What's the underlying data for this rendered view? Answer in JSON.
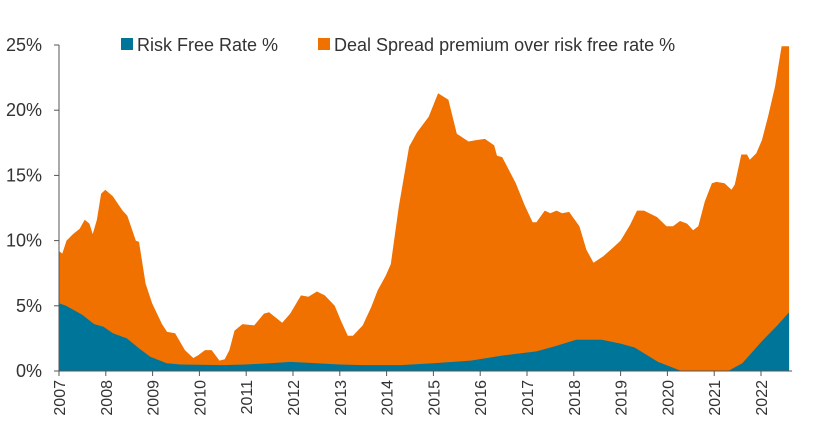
{
  "chart_data": {
    "type": "area",
    "stacked": true,
    "title": "",
    "xlabel": "",
    "ylabel": "",
    "xlim": [
      2007,
      2022.6
    ],
    "ylim": [
      0,
      25
    ],
    "yticks": [
      "0%",
      "5%",
      "10%",
      "15%",
      "20%",
      "25%"
    ],
    "ytick_values": [
      0,
      5,
      10,
      15,
      20,
      25
    ],
    "xticks": [
      "2007",
      "2008",
      "2009",
      "2010",
      "2011",
      "2012",
      "2013",
      "2014",
      "2015",
      "2016",
      "2017",
      "2018",
      "2019",
      "2020",
      "2021",
      "2022"
    ],
    "legend_position": "top",
    "series": [
      {
        "name": "Risk Free Rate %",
        "color": "#00759a",
        "points": [
          [
            2007.0,
            5.2
          ],
          [
            2007.15,
            5.0
          ],
          [
            2007.5,
            4.3
          ],
          [
            2007.75,
            3.6
          ],
          [
            2007.95,
            3.4
          ],
          [
            2008.15,
            2.9
          ],
          [
            2008.45,
            2.5
          ],
          [
            2008.72,
            1.7
          ],
          [
            2008.95,
            1.1
          ],
          [
            2009.3,
            0.6
          ],
          [
            2009.6,
            0.5
          ],
          [
            2010.5,
            0.45
          ],
          [
            2011.0,
            0.5
          ],
          [
            2011.5,
            0.6
          ],
          [
            2011.95,
            0.7
          ],
          [
            2012.5,
            0.6
          ],
          [
            2013.0,
            0.5
          ],
          [
            2013.5,
            0.45
          ],
          [
            2014.3,
            0.45
          ],
          [
            2015.0,
            0.6
          ],
          [
            2015.8,
            0.8
          ],
          [
            2016.5,
            1.2
          ],
          [
            2017.2,
            1.5
          ],
          [
            2017.6,
            1.9
          ],
          [
            2018.05,
            2.4
          ],
          [
            2018.6,
            2.4
          ],
          [
            2019.0,
            2.1
          ],
          [
            2019.3,
            1.8
          ],
          [
            2019.8,
            0.7
          ],
          [
            2020.3,
            0.0
          ],
          [
            2021.3,
            0.0
          ],
          [
            2021.6,
            0.6
          ],
          [
            2022.05,
            2.4
          ],
          [
            2022.35,
            3.5
          ],
          [
            2022.6,
            4.5
          ]
        ]
      },
      {
        "name": "Deal Spread premium over risk free rate %",
        "color": "#f07000",
        "stacked_total_points": [
          [
            2007.0,
            9.2
          ],
          [
            2007.07,
            9.0
          ],
          [
            2007.16,
            10.0
          ],
          [
            2007.3,
            10.5
          ],
          [
            2007.44,
            10.9
          ],
          [
            2007.55,
            11.6
          ],
          [
            2007.65,
            11.3
          ],
          [
            2007.72,
            10.5
          ],
          [
            2007.81,
            11.6
          ],
          [
            2007.9,
            13.6
          ],
          [
            2007.99,
            13.9
          ],
          [
            2008.15,
            13.4
          ],
          [
            2008.36,
            12.3
          ],
          [
            2008.46,
            11.9
          ],
          [
            2008.64,
            10.0
          ],
          [
            2008.71,
            9.9
          ],
          [
            2008.85,
            6.7
          ],
          [
            2008.99,
            5.2
          ],
          [
            2009.2,
            3.6
          ],
          [
            2009.31,
            3.0
          ],
          [
            2009.48,
            2.9
          ],
          [
            2009.69,
            1.6
          ],
          [
            2009.87,
            1.0
          ],
          [
            2009.97,
            1.2
          ],
          [
            2010.12,
            1.6
          ],
          [
            2010.26,
            1.6
          ],
          [
            2010.43,
            0.8
          ],
          [
            2010.54,
            0.9
          ],
          [
            2010.64,
            1.6
          ],
          [
            2010.75,
            3.1
          ],
          [
            2010.92,
            3.6
          ],
          [
            2011.17,
            3.5
          ],
          [
            2011.38,
            4.4
          ],
          [
            2011.49,
            4.5
          ],
          [
            2011.77,
            3.7
          ],
          [
            2011.94,
            4.4
          ],
          [
            2012.17,
            5.8
          ],
          [
            2012.33,
            5.7
          ],
          [
            2012.51,
            6.1
          ],
          [
            2012.68,
            5.8
          ],
          [
            2012.89,
            5.0
          ],
          [
            2013.03,
            3.8
          ],
          [
            2013.17,
            2.7
          ],
          [
            2013.28,
            2.7
          ],
          [
            2013.49,
            3.5
          ],
          [
            2013.67,
            4.9
          ],
          [
            2013.81,
            6.2
          ],
          [
            2013.98,
            7.3
          ],
          [
            2014.09,
            8.2
          ],
          [
            2014.26,
            12.6
          ],
          [
            2014.48,
            17.2
          ],
          [
            2014.65,
            18.3
          ],
          [
            2014.9,
            19.5
          ],
          [
            2015.1,
            21.3
          ],
          [
            2015.32,
            20.8
          ],
          [
            2015.5,
            18.2
          ],
          [
            2015.75,
            17.6
          ],
          [
            2015.9,
            17.7
          ],
          [
            2016.1,
            17.8
          ],
          [
            2016.3,
            17.3
          ],
          [
            2016.36,
            16.5
          ],
          [
            2016.47,
            16.4
          ],
          [
            2016.76,
            14.4
          ],
          [
            2016.95,
            12.7
          ],
          [
            2017.12,
            11.4
          ],
          [
            2017.2,
            11.4
          ],
          [
            2017.38,
            12.3
          ],
          [
            2017.5,
            12.1
          ],
          [
            2017.63,
            12.3
          ],
          [
            2017.75,
            12.1
          ],
          [
            2017.9,
            12.2
          ],
          [
            2018.12,
            11.1
          ],
          [
            2018.27,
            9.3
          ],
          [
            2018.42,
            8.3
          ],
          [
            2018.63,
            8.8
          ],
          [
            2018.85,
            9.5
          ],
          [
            2019.0,
            10.0
          ],
          [
            2019.2,
            11.2
          ],
          [
            2019.35,
            12.3
          ],
          [
            2019.5,
            12.3
          ],
          [
            2019.78,
            11.8
          ],
          [
            2019.98,
            11.1
          ],
          [
            2020.12,
            11.1
          ],
          [
            2020.27,
            11.5
          ],
          [
            2020.42,
            11.3
          ],
          [
            2020.55,
            10.8
          ],
          [
            2020.66,
            11.1
          ],
          [
            2020.8,
            13.0
          ],
          [
            2020.95,
            14.4
          ],
          [
            2021.05,
            14.5
          ],
          [
            2021.22,
            14.4
          ],
          [
            2021.37,
            13.9
          ],
          [
            2021.44,
            14.3
          ],
          [
            2021.58,
            16.6
          ],
          [
            2021.7,
            16.6
          ],
          [
            2021.76,
            16.2
          ],
          [
            2021.9,
            16.7
          ],
          [
            2022.02,
            17.7
          ],
          [
            2022.15,
            19.5
          ],
          [
            2022.3,
            21.8
          ],
          [
            2022.44,
            24.9
          ],
          [
            2022.6,
            24.9
          ]
        ]
      }
    ]
  }
}
